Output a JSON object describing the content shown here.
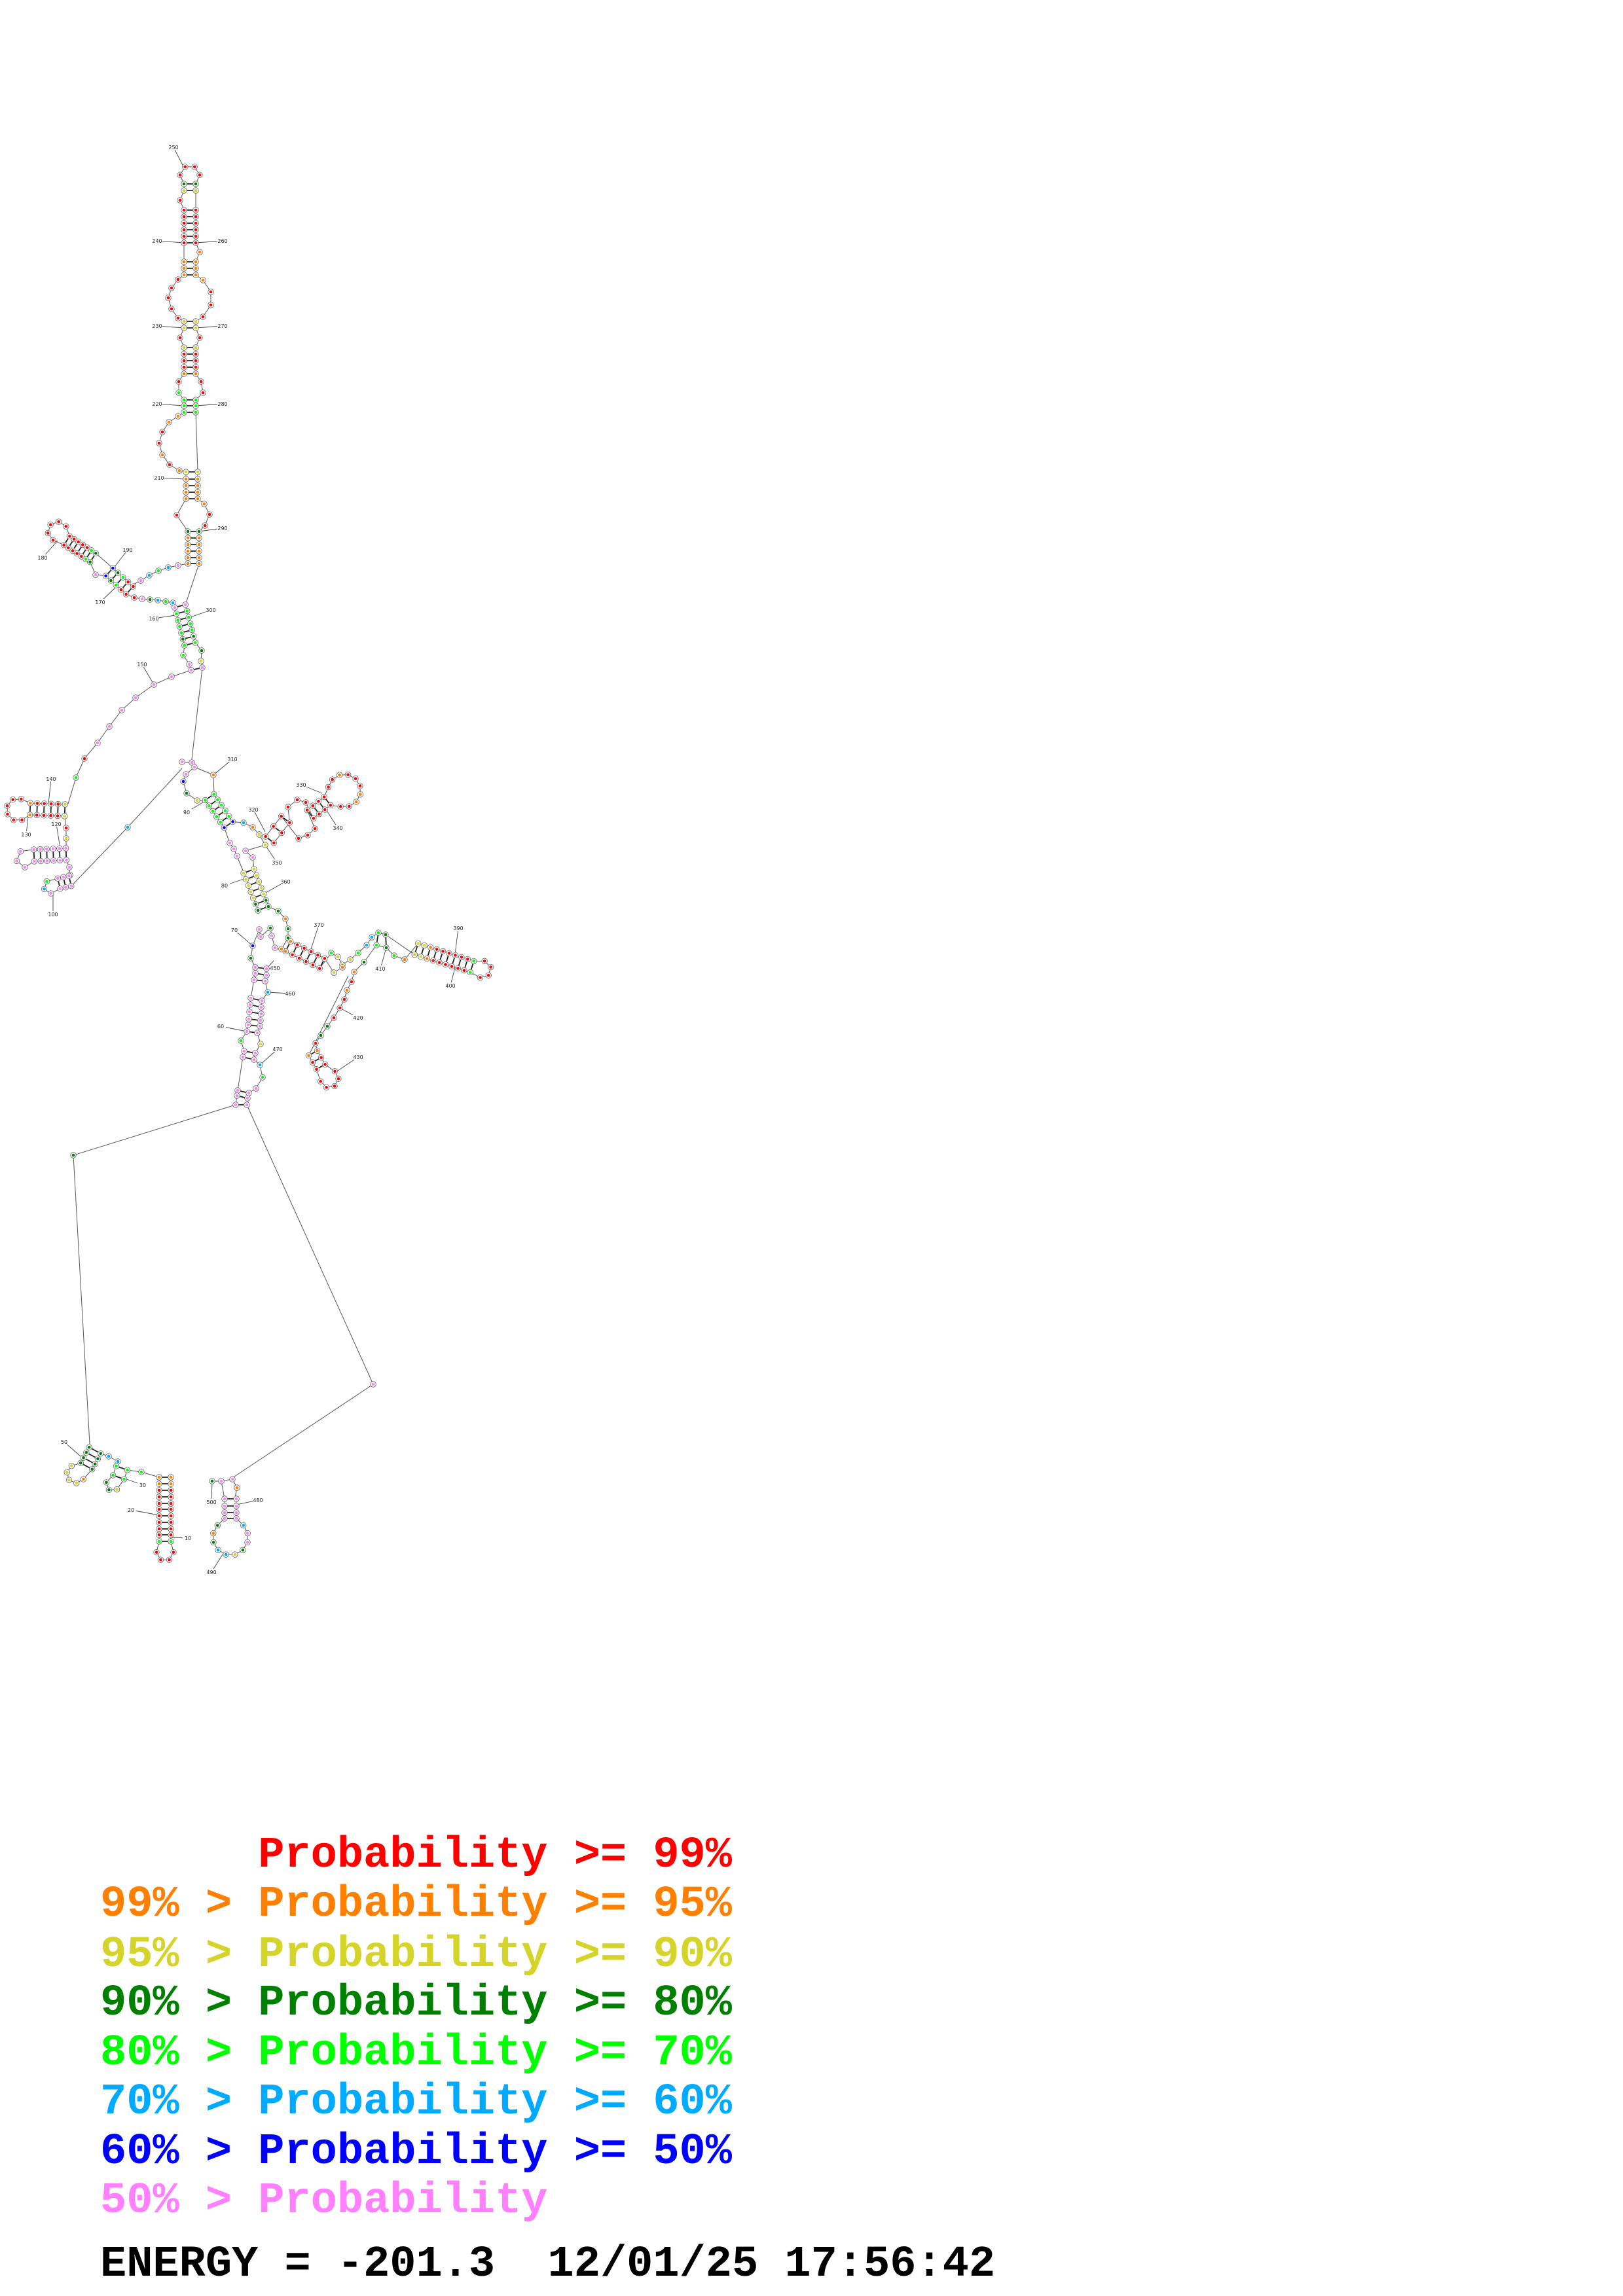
{
  "diagram": {
    "type": "RNA secondary structure plot",
    "position_labels": [
      "250",
      "240",
      "260",
      "230",
      "270",
      "220",
      "280",
      "210",
      "290",
      "180",
      "190",
      "170",
      "160",
      "300",
      "150",
      "140",
      "130",
      "120",
      "100",
      "90",
      "310",
      "330",
      "320",
      "340",
      "350",
      "80",
      "360",
      "70",
      "370",
      "390",
      "410",
      "400",
      "450",
      "460",
      "420",
      "470",
      "430",
      "60",
      "50",
      "30",
      "20",
      "10",
      "500",
      "480",
      "490"
    ]
  },
  "legend": [
    {
      "prefix": "",
      "text": "Probability >= 99%",
      "color": "#ff0000"
    },
    {
      "prefix": "99% > ",
      "text": "Probability >= 95%",
      "color": "#ff8000"
    },
    {
      "prefix": "95% > ",
      "text": "Probability >= 90%",
      "color": "#d4d42a"
    },
    {
      "prefix": "90% > ",
      "text": "Probability >= 80%",
      "color": "#008000"
    },
    {
      "prefix": "80% > ",
      "text": "Probability >= 70%",
      "color": "#00ff00"
    },
    {
      "prefix": "70% > ",
      "text": "Probability >= 60%",
      "color": "#00aaff"
    },
    {
      "prefix": "60% > ",
      "text": "Probability >= 50%",
      "color": "#0000ff"
    },
    {
      "prefix": "50% > ",
      "text": "Probability",
      "color": "#ff80ff"
    }
  ],
  "footer": {
    "energy": "ENERGY = -201.3",
    "timestamp": "12/01/25 17:56:42"
  }
}
